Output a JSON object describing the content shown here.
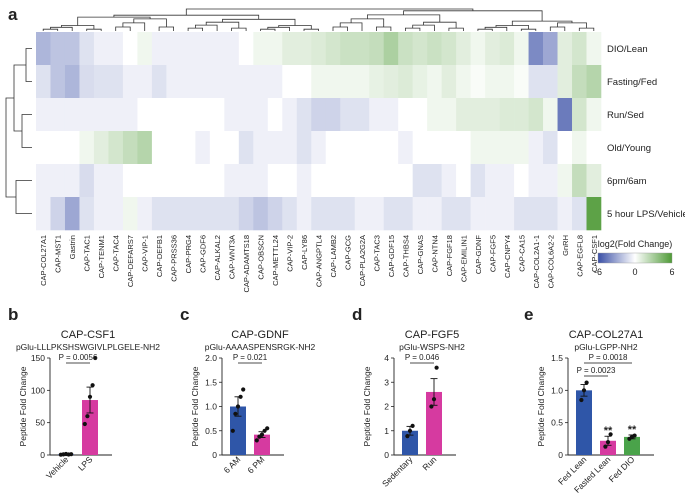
{
  "panel_labels": {
    "a": "a",
    "b": "b",
    "c": "c",
    "d": "d",
    "e": "e"
  },
  "colors": {
    "neg": "#3a4fa6",
    "mid": "#ffffff",
    "pos": "#4e9a36",
    "blue_bar": "#2f56a8",
    "magenta_bar": "#d63aa0",
    "green_bar": "#4aa34a"
  },
  "legend": {
    "title": "log2(Fold Change)",
    "ticks": [
      "-6",
      "0",
      "6"
    ],
    "min": -6,
    "max": 6
  },
  "chart_data": [
    {
      "type": "heatmap",
      "id": "heatmap",
      "rows": [
        "DIO/Lean",
        "Fasting/Fed",
        "Run/Sed",
        "Old/Young",
        "6pm/6am",
        "5 hour LPS/Vehicle"
      ],
      "columns": [
        "CAP-COL27A1",
        "CAP-MST1",
        "Gastrin",
        "CAP-TAC1",
        "CAP-TENM1",
        "CAP-TAC4",
        "CAP-DEFARS7",
        "CAP-VIP-1",
        "CAP-DEFB1",
        "CAP-PRSS36",
        "CAP-PRG4",
        "CAP-GDF6",
        "CAP-ALKAL2",
        "CAP-WNT3A",
        "CAP-ADAMTS18",
        "CAP-OBSCN",
        "CAP-METTL24",
        "CAP-VIP-2",
        "CAP-LY86",
        "CAP-ANGPTL4",
        "CAP-LAMB2",
        "CAP-GCG",
        "CAP-PLA2G2A",
        "CAP-TAC3",
        "CAP-GDF15",
        "CAP-THBS4",
        "CAP-GNAS",
        "CAP-NTN4",
        "CAP-FGF18",
        "CAP-EMILIN1",
        "CAP-GDNF",
        "CAP-FGF5",
        "CAP-CNPY4",
        "CAP-CA15",
        "CAP-COL2A1-1",
        "CAP-COL6A2-2",
        "GnRH",
        "CAP-EGFL8",
        "CAP-CSF1"
      ],
      "values": [
        [
          -2.5,
          -2,
          -2,
          -1,
          -0.5,
          -0.5,
          0,
          0.5,
          -0.5,
          -0.5,
          -0.5,
          -0.5,
          -0.5,
          -0.5,
          0,
          0.5,
          0.5,
          1,
          1,
          1.2,
          1.5,
          1.8,
          1.8,
          2,
          2.8,
          1.8,
          1.5,
          1.8,
          1.5,
          1,
          0.5,
          1,
          1.2,
          0.5,
          -4,
          -3,
          1,
          1.5,
          0.5
        ],
        [
          -1,
          -2,
          -2.5,
          -1.2,
          -1,
          -1,
          -0.5,
          -0.5,
          -1,
          -0.5,
          -0.5,
          -0.5,
          -0.5,
          -0.5,
          -0.5,
          -0.5,
          -0.5,
          0,
          0,
          0.5,
          0.5,
          0.5,
          0.5,
          0.8,
          1,
          1.2,
          0.8,
          0.5,
          1,
          0.5,
          0.2,
          0.5,
          0.5,
          0.2,
          -1,
          -1,
          1,
          2,
          2.5
        ],
        [
          -0.5,
          -0.5,
          -0.5,
          -0.5,
          -0.5,
          -0.5,
          -0.5,
          0,
          0,
          0,
          0,
          0,
          0,
          -0.5,
          -0.5,
          -0.5,
          0,
          -0.5,
          -1,
          -1.5,
          -1.5,
          -1,
          -1,
          -0.5,
          -0.5,
          0,
          0,
          0.5,
          0.5,
          1,
          1,
          1,
          1.2,
          1.2,
          1.5,
          0.5,
          -4.5,
          1.5,
          0.5
        ],
        [
          0,
          0,
          0,
          0.5,
          1,
          1.5,
          2,
          2.5,
          0,
          0,
          0,
          -0.5,
          0,
          0,
          -1,
          -0.5,
          -0.5,
          -0.5,
          -1,
          -0.5,
          0,
          0,
          0,
          0,
          0,
          -0.5,
          0,
          0,
          0,
          0,
          0.5,
          0.5,
          0.5,
          0.5,
          -0.5,
          -1,
          0,
          0.5,
          0
        ],
        [
          -0.5,
          -0.5,
          -0.5,
          -1.2,
          -0.5,
          -0.5,
          0,
          0,
          0,
          0,
          0,
          0,
          0,
          -0.5,
          -0.5,
          -0.5,
          0,
          0,
          -0.5,
          0,
          0,
          0,
          0,
          0,
          0,
          0,
          -1,
          -1,
          -0.5,
          0,
          -1,
          -0.5,
          -0.5,
          0,
          -0.5,
          -0.5,
          0.5,
          2,
          1
        ],
        [
          -0.5,
          -1.5,
          -3,
          -1,
          -0.5,
          -0.5,
          0.5,
          -0.5,
          -1,
          -1,
          -1,
          -1,
          -1,
          -1,
          -1.5,
          -2,
          -1.5,
          -1,
          -0.5,
          -1,
          -1,
          -1,
          -0.5,
          -0.5,
          -1,
          -1,
          -0.5,
          -0.5,
          -1,
          -1,
          -0.5,
          -0.5,
          -0.5,
          -1,
          -1,
          -1,
          -0.5,
          -1,
          5.5
        ]
      ]
    },
    {
      "type": "bar",
      "id": "b",
      "title": "CAP-CSF1",
      "subtitle": "pGlu-LLLPKSHSWGIVLPLGELE-NH2",
      "ylabel": "Peptide Fold Change",
      "ylim": [
        0,
        150
      ],
      "yticks": [
        "0",
        "50",
        "100",
        "150"
      ],
      "categories": [
        "Vehicle",
        "LPS"
      ],
      "values": [
        1,
        85
      ],
      "sem": [
        0.5,
        20
      ],
      "points": [
        [
          0.5,
          1,
          1.5,
          0.8,
          1.2
        ],
        [
          48,
          60,
          90,
          108,
          160
        ]
      ],
      "bar_colors": [
        "#2f56a8",
        "#d63aa0"
      ],
      "annotations": [
        {
          "text": "P = 0.0056",
          "from": 0,
          "to": 1
        }
      ],
      "stars": [
        "",
        ""
      ]
    },
    {
      "type": "bar",
      "id": "c",
      "title": "CAP-GDNF",
      "subtitle": "pGlu-AAAASPENSRGK-NH2",
      "ylabel": "Peptide Fold Change",
      "ylim": [
        0,
        2.0
      ],
      "yticks": [
        "0",
        "0.5",
        "1.0",
        "1.5",
        "2.0"
      ],
      "categories": [
        "6 AM",
        "6 PM"
      ],
      "values": [
        1.0,
        0.42
      ],
      "sem": [
        0.2,
        0.06
      ],
      "points": [
        [
          0.5,
          0.85,
          1.0,
          1.2,
          1.35
        ],
        [
          0.3,
          0.38,
          0.42,
          0.5,
          0.55
        ]
      ],
      "bar_colors": [
        "#2f56a8",
        "#d63aa0"
      ],
      "annotations": [
        {
          "text": "P = 0.021",
          "from": 0,
          "to": 1
        }
      ],
      "stars": [
        "",
        ""
      ]
    },
    {
      "type": "bar",
      "id": "d",
      "title": "CAP-FGF5",
      "subtitle": "pGlu-WSPS-NH2",
      "ylabel": "Peptide Fold Change",
      "ylim": [
        0,
        4
      ],
      "yticks": [
        "0",
        "1",
        "2",
        "3",
        "4"
      ],
      "categories": [
        "Sedentary",
        "Run"
      ],
      "values": [
        1.0,
        2.6
      ],
      "sem": [
        0.18,
        0.55
      ],
      "points": [
        [
          0.78,
          1.0,
          1.2
        ],
        [
          2.0,
          2.3,
          3.6
        ]
      ],
      "bar_colors": [
        "#2f56a8",
        "#d63aa0"
      ],
      "annotations": [
        {
          "text": "P = 0.046",
          "from": 0,
          "to": 1
        }
      ],
      "stars": [
        "",
        ""
      ]
    },
    {
      "type": "bar",
      "id": "e",
      "title": "CAP-COL27A1",
      "subtitle": "pGlu-LGPP-NH2",
      "ylabel": "Peptide Fold Change",
      "ylim": [
        0,
        1.5
      ],
      "yticks": [
        "0",
        "0.5",
        "1.0",
        "1.5"
      ],
      "categories": [
        "Fed Lean",
        "Fasted Lean",
        "Fed DIO"
      ],
      "values": [
        1.0,
        0.22,
        0.28
      ],
      "sem": [
        0.09,
        0.07,
        0.03
      ],
      "points": [
        [
          0.85,
          1.0,
          1.12
        ],
        [
          0.13,
          0.2,
          0.32
        ],
        [
          0.25,
          0.28,
          0.3
        ]
      ],
      "bar_colors": [
        "#2f56a8",
        "#d63aa0",
        "#4aa34a"
      ],
      "annotations": [
        {
          "text": "P = 0.0023",
          "from": 0,
          "to": 1
        },
        {
          "text": "P = 0.0018",
          "from": 0,
          "to": 2
        }
      ],
      "stars": [
        "",
        "**",
        "**"
      ]
    }
  ]
}
